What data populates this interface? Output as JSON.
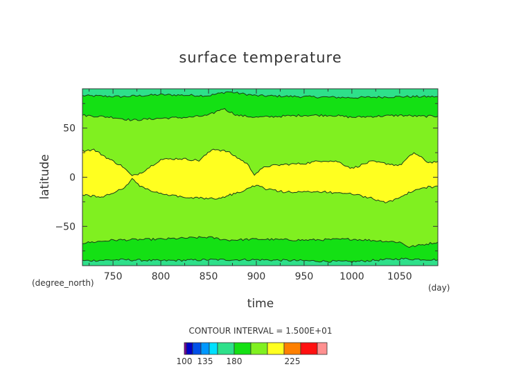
{
  "chart_data": {
    "type": "contour",
    "title": "surface temperature",
    "xlabel": "time",
    "ylabel": "latitude",
    "x_units": "(day)",
    "y_units": "(degree_north)",
    "xlim": [
      718,
      1090
    ],
    "ylim": [
      -90,
      90
    ],
    "x_ticks": [
      750,
      800,
      850,
      900,
      950,
      1000,
      1050
    ],
    "y_ticks": [
      50,
      0,
      -50
    ],
    "y_tick_labels": [
      "50",
      "0",
      "−50"
    ],
    "contour_interval_text": "CONTOUR INTERVAL = 1.500E+01",
    "contour_levels": [
      180,
      195,
      210
    ],
    "band_colors": {
      "165-180": "#2ee08a",
      "180-195": "#14e014",
      "195-210": "#80f020",
      "210-225": "#ffff20"
    },
    "contour_180": {
      "north": {
        "x": [
          718,
          760,
          800,
          850,
          870,
          900,
          950,
          1000,
          1050,
          1090
        ],
        "y": [
          83,
          82,
          84,
          83,
          87,
          83,
          82,
          81,
          82,
          82
        ]
      },
      "south": {
        "x": [
          718,
          760,
          800,
          850,
          900,
          950,
          1000,
          1050,
          1090
        ],
        "y": [
          -85,
          -84,
          -85,
          -84,
          -84,
          -85,
          -86,
          -83,
          -84
        ]
      }
    },
    "contour_195": {
      "north": {
        "x": [
          718,
          750,
          770,
          800,
          830,
          850,
          865,
          880,
          900,
          950,
          980,
          1000,
          1050,
          1070,
          1090
        ],
        "y": [
          63,
          61,
          58,
          60,
          61,
          63,
          70,
          63,
          61,
          63,
          63,
          61,
          63,
          62,
          62
        ]
      },
      "south": {
        "x": [
          718,
          750,
          800,
          850,
          870,
          900,
          950,
          1000,
          1050,
          1060,
          1090
        ],
        "y": [
          -67,
          -64,
          -63,
          -61,
          -64,
          -63,
          -64,
          -63,
          -66,
          -71,
          -66
        ]
      }
    },
    "contour_210": {
      "upper": {
        "x": [
          718,
          730,
          745,
          760,
          770,
          780,
          800,
          820,
          840,
          855,
          870,
          880,
          890,
          898,
          910,
          930,
          950,
          970,
          985,
          1000,
          1020,
          1050,
          1065,
          1080,
          1090
        ],
        "y": [
          27,
          28,
          19,
          11,
          1,
          5,
          18,
          19,
          17,
          29,
          26,
          20,
          14,
          3,
          11,
          13,
          14,
          17,
          16,
          9,
          16,
          12,
          25,
          15,
          16
        ]
      },
      "lower": {
        "x": [
          1090,
          1080,
          1065,
          1050,
          1035,
          1020,
          1000,
          985,
          970,
          950,
          930,
          910,
          900,
          880,
          865,
          855,
          840,
          820,
          800,
          780,
          770,
          760,
          740,
          725,
          718
        ],
        "y": [
          -10,
          -10,
          -13,
          -21,
          -26,
          -21,
          -17,
          -16,
          -15,
          -15,
          -15,
          -12,
          -8,
          -16,
          -20,
          -22,
          -21,
          -20,
          -17,
          -10,
          -2,
          -12,
          -20,
          -19,
          -18
        ]
      }
    },
    "colorbar": {
      "colors": [
        "#8000a0",
        "#0000c8",
        "#0050e8",
        "#0098ff",
        "#00e0ff",
        "#2ee08a",
        "#14e014",
        "#80f020",
        "#ffff20",
        "#ff8000",
        "#ff1010",
        "#ff9090"
      ],
      "labels": [
        "100",
        "135",
        "180",
        "225"
      ]
    }
  }
}
